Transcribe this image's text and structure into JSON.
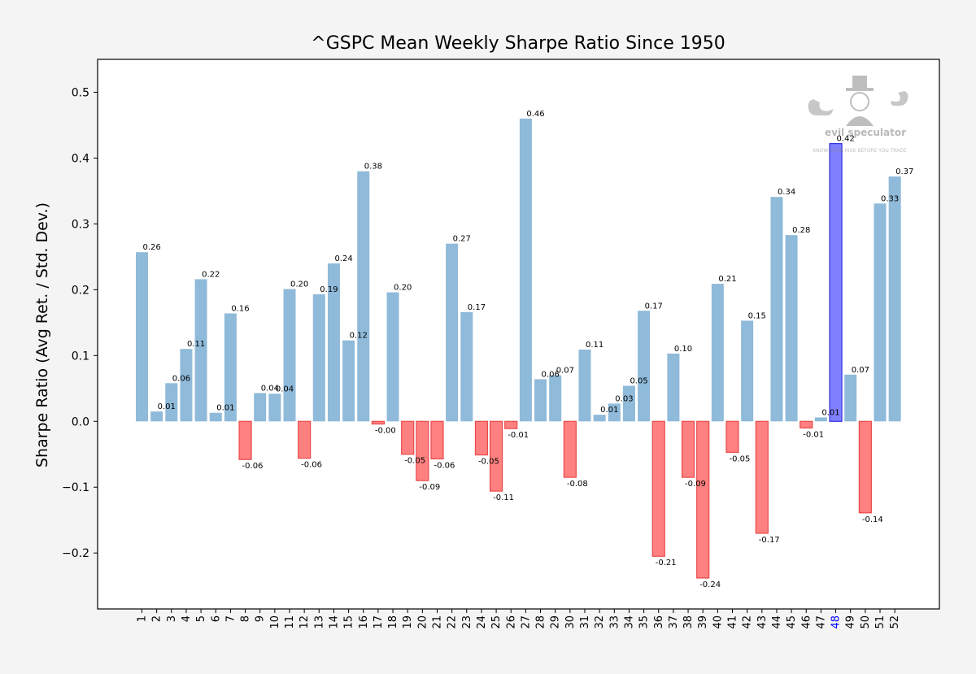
{
  "colors": {
    "background": "#f4f4f4",
    "plot_background": "#ffffff",
    "positive_bar": "#8fbad9",
    "negative_bar_fill": "#ff8080",
    "negative_bar_edge": "#e84a4a",
    "highlight_bar_fill": "#8080ff",
    "highlight_bar_edge": "#3030e0",
    "highlight_tick": "#0000ff",
    "axis": "#000000"
  },
  "watermark": {
    "brand": "evil speculator",
    "tagline": "KNOW YOUR RISK BEFORE YOU TRADE"
  },
  "chart_data": {
    "type": "bar",
    "title": "^GSPC Mean Weekly Sharpe Ratio Since 1950",
    "xlabel": "",
    "ylabel": "Sharpe Ratio (Avg Ret. / Std. Dev.)",
    "ylim": [
      -0.285,
      0.55
    ],
    "yticks": [
      -0.2,
      -0.1,
      0.0,
      0.1,
      0.2,
      0.3,
      0.4,
      0.5
    ],
    "ytick_labels": [
      "−0.2",
      "−0.1",
      "0.0",
      "0.1",
      "0.2",
      "0.3",
      "0.4",
      "0.5"
    ],
    "grid": false,
    "highlight_category": "48",
    "categories": [
      "1",
      "2",
      "3",
      "4",
      "5",
      "6",
      "7",
      "8",
      "9",
      "10",
      "11",
      "12",
      "13",
      "14",
      "15",
      "16",
      "17",
      "18",
      "19",
      "20",
      "21",
      "22",
      "23",
      "24",
      "25",
      "26",
      "27",
      "28",
      "29",
      "30",
      "31",
      "32",
      "33",
      "34",
      "35",
      "36",
      "37",
      "38",
      "39",
      "40",
      "41",
      "42",
      "43",
      "44",
      "45",
      "46",
      "47",
      "48",
      "49",
      "50",
      "51",
      "52"
    ],
    "values": [
      0.257,
      0.015,
      0.058,
      0.11,
      0.216,
      0.013,
      0.164,
      -0.058,
      0.043,
      0.042,
      0.201,
      -0.056,
      0.193,
      0.24,
      0.123,
      0.38,
      -0.004,
      0.196,
      -0.05,
      -0.09,
      -0.057,
      0.27,
      0.166,
      -0.051,
      -0.106,
      -0.011,
      0.46,
      0.064,
      0.07,
      -0.085,
      0.109,
      0.01,
      0.027,
      0.054,
      0.168,
      -0.205,
      0.103,
      -0.085,
      -0.238,
      0.209,
      -0.047,
      0.153,
      -0.17,
      0.341,
      0.283,
      -0.01,
      0.006,
      0.422,
      0.071,
      -0.139,
      0.331,
      0.372
    ],
    "value_labels": [
      "0.26",
      "0.01",
      "0.06",
      "0.11",
      "0.22",
      "0.01",
      "0.16",
      "-0.06",
      "0.04",
      "0.04",
      "0.20",
      "-0.06",
      "0.19",
      "0.24",
      "0.12",
      "0.38",
      "-0.00",
      "0.20",
      "-0.05",
      "-0.09",
      "-0.06",
      "0.27",
      "0.17",
      "-0.05",
      "-0.11",
      "-0.01",
      "0.46",
      "0.06",
      "0.07",
      "-0.08",
      "0.11",
      "0.01",
      "0.03",
      "0.05",
      "0.17",
      "-0.21",
      "0.10",
      "-0.09",
      "-0.24",
      "0.21",
      "-0.05",
      "0.15",
      "-0.17",
      "0.34",
      "0.28",
      "-0.01",
      "0.01",
      "0.42",
      "0.07",
      "-0.14",
      "0.33",
      "0.37"
    ]
  }
}
